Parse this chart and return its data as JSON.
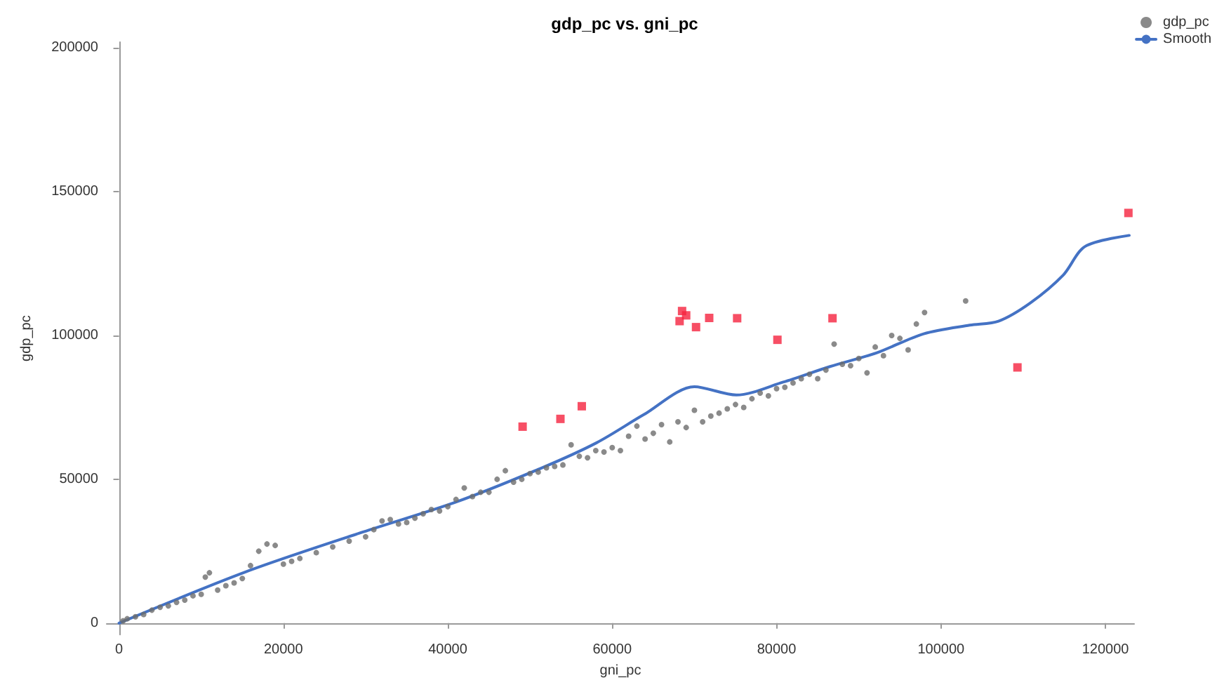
{
  "chart_data": {
    "type": "scatter",
    "title": "gdp_pc vs. gni_pc",
    "xlabel": "gni_pc",
    "ylabel": "gdp_pc",
    "xlim": [
      -1500,
      123500
    ],
    "ylim": [
      -4000,
      202000
    ],
    "xticks": [
      0,
      20000,
      40000,
      60000,
      80000,
      100000,
      120000
    ],
    "yticks": [
      0,
      50000,
      100000,
      150000,
      200000
    ],
    "grid": false,
    "legend": "top right",
    "series": [
      {
        "name": "gdp_pc",
        "marker": "circle",
        "color": "#6d6d6d",
        "x": [
          500,
          1000,
          2000,
          3000,
          4000,
          5000,
          6000,
          7000,
          8000,
          9000,
          10000,
          10500,
          11000,
          12000,
          13000,
          14000,
          15000,
          16000,
          17000,
          18000,
          19000,
          20000,
          21000,
          22000,
          24000,
          26000,
          28000,
          30000,
          31000,
          32000,
          33000,
          34000,
          35000,
          36000,
          37000,
          38000,
          39000,
          40000,
          41000,
          42000,
          43000,
          44000,
          45000,
          46000,
          47000,
          48000,
          49000,
          50000,
          51000,
          52000,
          53000,
          54000,
          55000,
          56000,
          57000,
          58000,
          59000,
          60000,
          61000,
          62000,
          63000,
          64000,
          65000,
          66000,
          67000,
          68000,
          69000,
          70000,
          71000,
          72000,
          73000,
          74000,
          75000,
          76000,
          77000,
          78000,
          79000,
          80000,
          81000,
          82000,
          83000,
          84000,
          85000,
          86000,
          87000,
          88000,
          89000,
          90000,
          91000,
          92000,
          93000,
          94000,
          95000,
          96000,
          97000,
          98000,
          103000
        ],
        "values": [
          800,
          1500,
          2200,
          3000,
          4500,
          5500,
          6000,
          7200,
          8000,
          9500,
          10000,
          16000,
          17500,
          11500,
          13000,
          14000,
          15500,
          20000,
          25000,
          27500,
          27000,
          20500,
          21500,
          22500,
          24500,
          26500,
          28500,
          30000,
          32500,
          35500,
          36000,
          34500,
          35000,
          36500,
          38000,
          39500,
          39000,
          40500,
          43000,
          47000,
          44000,
          45500,
          45500,
          50000,
          53000,
          49000,
          50000,
          52000,
          52500,
          54000,
          54500,
          55000,
          62000,
          58000,
          57500,
          60000,
          59500,
          61000,
          60000,
          65000,
          68500,
          64000,
          66000,
          69000,
          63000,
          70000,
          68000,
          74000,
          70000,
          72000,
          73000,
          74500,
          76000,
          75000,
          78000,
          80000,
          79000,
          81500,
          82000,
          83500,
          85000,
          86500,
          85000,
          88000,
          97000,
          90000,
          89500,
          92000,
          87000,
          96000,
          93000,
          100000,
          99000,
          95000,
          104000,
          108000,
          112000
        ]
      },
      {
        "marker": "square",
        "color": "#f5233f",
        "x": [
          49100,
          53700,
          56300,
          68500,
          69000,
          68200,
          70200,
          71800,
          75200,
          80100,
          86800,
          109300,
          122800
        ],
        "values": [
          68300,
          71000,
          75400,
          108500,
          107000,
          105000,
          102900,
          106100,
          106000,
          98500,
          106000,
          88900,
          142600
        ]
      },
      {
        "name": "Smooth",
        "type": "line",
        "marker": "none",
        "line_style": "solid",
        "color": "#4472c4",
        "x": [
          0,
          15400,
          29700,
          41100,
          51300,
          58100,
          63800,
          70000,
          75100,
          80800,
          86500,
          92200,
          97900,
          103500,
          107000,
          110900,
          114900,
          117500,
          122900
        ],
        "values": [
          0,
          17800,
          31700,
          42200,
          53800,
          62700,
          72400,
          82200,
          79300,
          83800,
          89200,
          94000,
          100600,
          103600,
          105000,
          111400,
          121100,
          130900,
          134800
        ]
      }
    ]
  }
}
